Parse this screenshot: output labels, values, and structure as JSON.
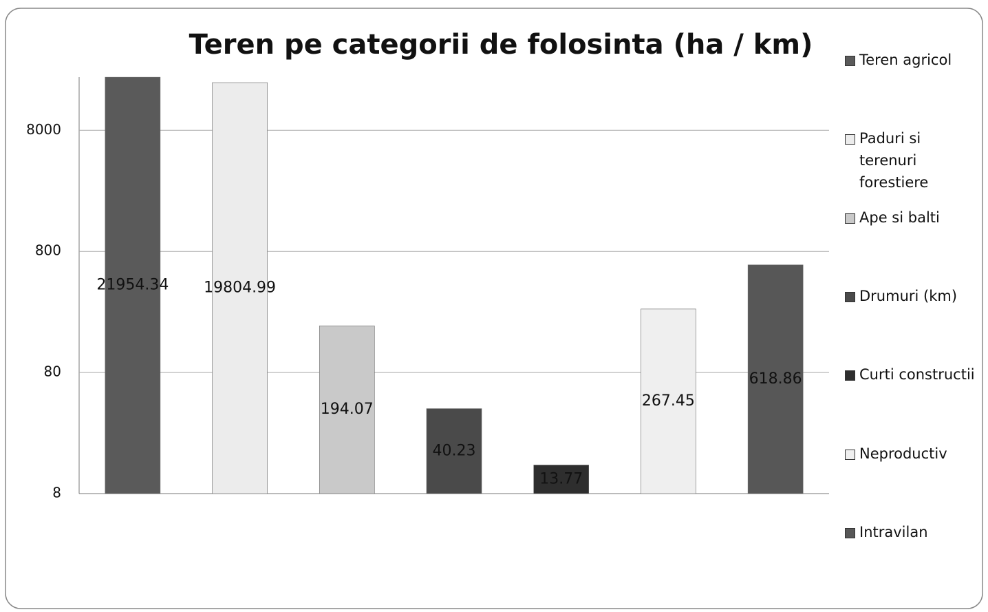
{
  "chart_data": {
    "type": "bar",
    "title": "Teren pe categorii de folosinta (ha / km)",
    "series": [
      {
        "name": "Teren agricol",
        "color": "#5a5a5a",
        "values": [
          21954.34
        ]
      },
      {
        "name": "Paduri si terenuri forestiere",
        "color": "#ececec",
        "values": [
          19804.99
        ]
      },
      {
        "name": "Ape si balti",
        "color": "#c9c9c9",
        "values": [
          194.07
        ]
      },
      {
        "name": "Drumuri (km)",
        "color": "#4a4a4a",
        "values": [
          40.23
        ]
      },
      {
        "name": "Curti constructii",
        "color": "#2e2e2e",
        "values": [
          13.77
        ]
      },
      {
        "name": "Neproductiv",
        "color": "#efefef",
        "values": [
          267.45
        ]
      },
      {
        "name": "Intravilan",
        "color": "#575757",
        "values": [
          618.86
        ]
      }
    ],
    "ylim": [
      8,
      22000
    ],
    "yticks": [
      8,
      80,
      800,
      8000
    ],
    "log_scale": true,
    "grid": true,
    "legend": "right"
  }
}
